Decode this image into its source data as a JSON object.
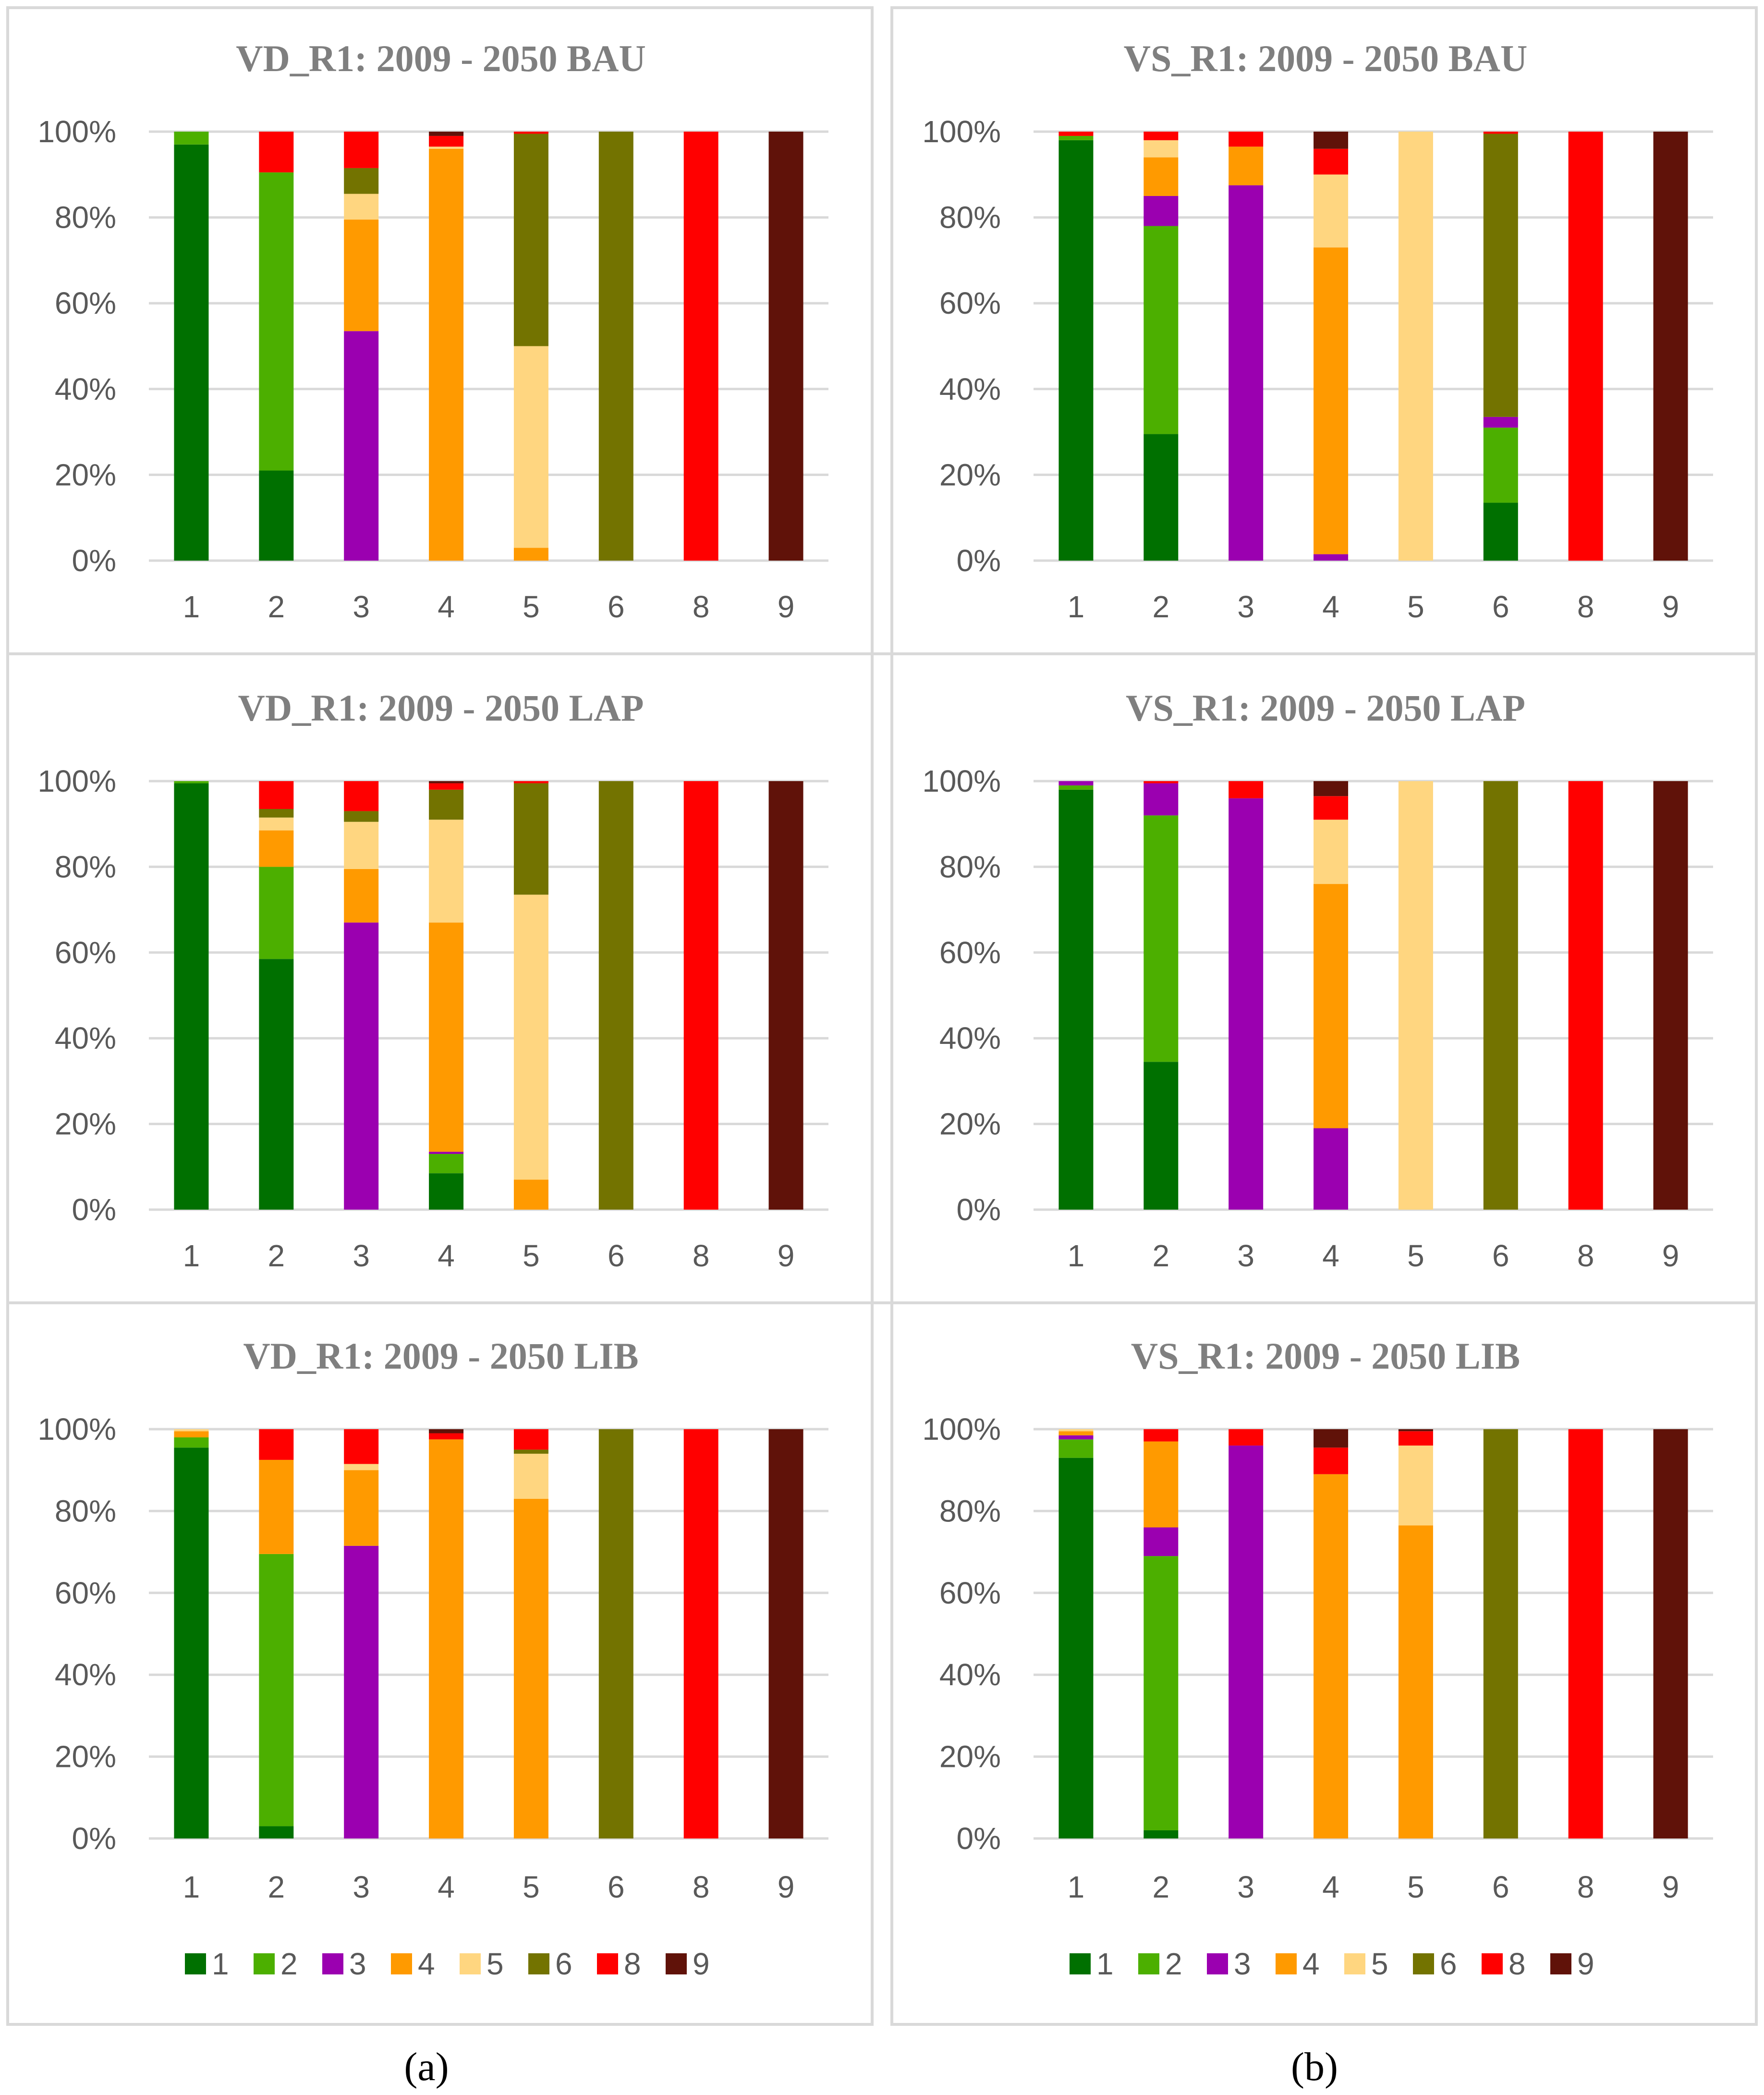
{
  "colors": {
    "1": "#007000",
    "2": "#4caf00",
    "3": "#9b00b0",
    "4": "#ff9a00",
    "5": "#ffd680",
    "6": "#737300",
    "8": "#ff0000",
    "9": "#601209"
  },
  "panel_labels": [
    "(a)",
    "(b)"
  ],
  "chart_data": [
    {
      "type": "bar",
      "stacked": true,
      "title": "VD_R1: 2009 - 2050 BAU",
      "categories": [
        "1",
        "2",
        "3",
        "4",
        "5",
        "6",
        "8",
        "9"
      ],
      "y_ticks": [
        "0%",
        "20%",
        "40%",
        "60%",
        "80%",
        "100%"
      ],
      "ylim": [
        0,
        100
      ],
      "grid": true,
      "legend": "none",
      "stack_keys": [
        "1",
        "2",
        "3",
        "4",
        "5",
        "6",
        "8",
        "9"
      ],
      "series": [
        {
          "name": "1",
          "values": [
            97,
            21,
            0,
            0,
            0,
            0,
            0,
            0
          ]
        },
        {
          "name": "2",
          "values": [
            3,
            69.5,
            0,
            0,
            0,
            0,
            0,
            0
          ]
        },
        {
          "name": "3",
          "values": [
            0,
            0,
            53.5,
            0,
            0,
            0,
            0,
            0
          ]
        },
        {
          "name": "4",
          "values": [
            0,
            0,
            26,
            96,
            3,
            0,
            0,
            0
          ]
        },
        {
          "name": "5",
          "values": [
            0,
            0,
            6,
            0.5,
            47,
            0,
            0,
            0
          ]
        },
        {
          "name": "6",
          "values": [
            0,
            0,
            6,
            0,
            49.5,
            100,
            0,
            0
          ]
        },
        {
          "name": "8",
          "values": [
            0,
            9.5,
            8.5,
            2.5,
            0.5,
            0,
            100,
            0
          ]
        },
        {
          "name": "9",
          "values": [
            0,
            0,
            0,
            1,
            0,
            0,
            0,
            100
          ]
        }
      ]
    },
    {
      "type": "bar",
      "stacked": true,
      "title": "VS_R1: 2009 - 2050 BAU",
      "categories": [
        "1",
        "2",
        "3",
        "4",
        "5",
        "6",
        "8",
        "9"
      ],
      "y_ticks": [
        "0%",
        "20%",
        "40%",
        "60%",
        "80%",
        "100%"
      ],
      "ylim": [
        0,
        100
      ],
      "grid": true,
      "legend": "none",
      "stack_keys": [
        "1",
        "2",
        "3",
        "4",
        "5",
        "6",
        "8",
        "9"
      ],
      "series": [
        {
          "name": "1",
          "values": [
            98,
            29.5,
            0,
            0,
            0,
            13.5,
            0,
            0
          ]
        },
        {
          "name": "2",
          "values": [
            1,
            48.5,
            0,
            0,
            0,
            17.5,
            0,
            0
          ]
        },
        {
          "name": "3",
          "values": [
            0,
            7,
            87.5,
            1.5,
            0,
            2.5,
            0,
            0
          ]
        },
        {
          "name": "4",
          "values": [
            0,
            9,
            9,
            71.5,
            0,
            0,
            0,
            0
          ]
        },
        {
          "name": "5",
          "values": [
            0,
            4,
            0,
            17,
            100,
            0,
            0,
            0
          ]
        },
        {
          "name": "6",
          "values": [
            0,
            0,
            0,
            0,
            0,
            66,
            0,
            0
          ]
        },
        {
          "name": "8",
          "values": [
            1,
            2,
            3.5,
            6,
            0,
            0.5,
            100,
            0
          ]
        },
        {
          "name": "9",
          "values": [
            0,
            0,
            0,
            4,
            0,
            0,
            0,
            100
          ]
        }
      ]
    },
    {
      "type": "bar",
      "stacked": true,
      "title": "VD_R1: 2009 - 2050 LAP",
      "categories": [
        "1",
        "2",
        "3",
        "4",
        "5",
        "6",
        "8",
        "9"
      ],
      "y_ticks": [
        "0%",
        "20%",
        "40%",
        "60%",
        "80%",
        "100%"
      ],
      "ylim": [
        0,
        100
      ],
      "grid": true,
      "legend": "none",
      "stack_keys": [
        "1",
        "2",
        "3",
        "4",
        "5",
        "6",
        "8",
        "9"
      ],
      "series": [
        {
          "name": "1",
          "values": [
            99.5,
            58.5,
            0,
            8.5,
            0,
            0,
            0,
            0
          ]
        },
        {
          "name": "2",
          "values": [
            0.5,
            21.5,
            0,
            4.5,
            0,
            0,
            0,
            0
          ]
        },
        {
          "name": "3",
          "values": [
            0,
            0,
            67,
            0.5,
            0,
            0,
            0,
            0
          ]
        },
        {
          "name": "4",
          "values": [
            0,
            8.5,
            12.5,
            53.5,
            7,
            0,
            0,
            0
          ]
        },
        {
          "name": "5",
          "values": [
            0,
            3,
            11,
            24,
            66.5,
            0,
            0,
            0
          ]
        },
        {
          "name": "6",
          "values": [
            0,
            2,
            2.5,
            7,
            26,
            100,
            0,
            0
          ]
        },
        {
          "name": "8",
          "values": [
            0,
            6.5,
            7,
            1.5,
            0.5,
            0,
            100,
            0
          ]
        },
        {
          "name": "9",
          "values": [
            0,
            0,
            0,
            0.5,
            0,
            0,
            0,
            100
          ]
        }
      ]
    },
    {
      "type": "bar",
      "stacked": true,
      "title": "VS_R1: 2009 - 2050 LAP",
      "categories": [
        "1",
        "2",
        "3",
        "4",
        "5",
        "6",
        "8",
        "9"
      ],
      "y_ticks": [
        "0%",
        "20%",
        "40%",
        "60%",
        "80%",
        "100%"
      ],
      "ylim": [
        0,
        100
      ],
      "grid": true,
      "legend": "none",
      "stack_keys": [
        "1",
        "2",
        "3",
        "4",
        "5",
        "6",
        "8",
        "9"
      ],
      "series": [
        {
          "name": "1",
          "values": [
            98,
            34.5,
            0,
            0,
            0,
            0,
            0,
            0
          ]
        },
        {
          "name": "2",
          "values": [
            1,
            57.5,
            0,
            0,
            0,
            0,
            0,
            0
          ]
        },
        {
          "name": "3",
          "values": [
            1,
            7.5,
            96,
            19,
            0,
            0,
            0,
            0
          ]
        },
        {
          "name": "4",
          "values": [
            0,
            0,
            0,
            57,
            0,
            0,
            0,
            0
          ]
        },
        {
          "name": "5",
          "values": [
            0,
            0,
            0,
            15,
            100,
            0,
            0,
            0
          ]
        },
        {
          "name": "6",
          "values": [
            0,
            0,
            0,
            0,
            0,
            100,
            0,
            0
          ]
        },
        {
          "name": "8",
          "values": [
            0,
            0.5,
            4,
            5.5,
            0,
            0,
            100,
            0
          ]
        },
        {
          "name": "9",
          "values": [
            0,
            0,
            0,
            3.5,
            0,
            0,
            0,
            100
          ]
        }
      ]
    },
    {
      "type": "bar",
      "stacked": true,
      "title": "VD_R1: 2009 - 2050 LIB",
      "categories": [
        "1",
        "2",
        "3",
        "4",
        "5",
        "6",
        "8",
        "9"
      ],
      "y_ticks": [
        "0%",
        "20%",
        "40%",
        "60%",
        "80%",
        "100%"
      ],
      "ylim": [
        0,
        100
      ],
      "grid": true,
      "legend": "bottom",
      "stack_keys": [
        "1",
        "2",
        "3",
        "4",
        "5",
        "6",
        "8",
        "9"
      ],
      "series": [
        {
          "name": "1",
          "values": [
            95.5,
            3,
            0,
            0,
            0,
            0,
            0,
            0
          ]
        },
        {
          "name": "2",
          "values": [
            2.5,
            66.5,
            0,
            0,
            0,
            0,
            0,
            0
          ]
        },
        {
          "name": "3",
          "values": [
            0,
            0,
            71.5,
            0,
            0,
            0,
            0,
            0
          ]
        },
        {
          "name": "4",
          "values": [
            1.5,
            23,
            18.5,
            97.5,
            83,
            0,
            0,
            0
          ]
        },
        {
          "name": "5",
          "values": [
            0.5,
            0,
            1.5,
            0,
            11,
            0,
            0,
            0
          ]
        },
        {
          "name": "6",
          "values": [
            0,
            0,
            0,
            0,
            1,
            100,
            0,
            0
          ]
        },
        {
          "name": "8",
          "values": [
            0,
            7.5,
            8.5,
            1.5,
            5,
            0,
            100,
            0
          ]
        },
        {
          "name": "9",
          "values": [
            0,
            0,
            0,
            1,
            0,
            0,
            0,
            100
          ]
        }
      ]
    },
    {
      "type": "bar",
      "stacked": true,
      "title": "VS_R1: 2009 - 2050 LIB",
      "categories": [
        "1",
        "2",
        "3",
        "4",
        "5",
        "6",
        "8",
        "9"
      ],
      "y_ticks": [
        "0%",
        "20%",
        "40%",
        "60%",
        "80%",
        "100%"
      ],
      "ylim": [
        0,
        100
      ],
      "grid": true,
      "legend": "bottom",
      "stack_keys": [
        "1",
        "2",
        "3",
        "4",
        "5",
        "6",
        "8",
        "9"
      ],
      "series": [
        {
          "name": "1",
          "values": [
            93,
            2,
            0,
            0,
            0,
            0,
            0,
            0
          ]
        },
        {
          "name": "2",
          "values": [
            4.5,
            67,
            0,
            0,
            0,
            0,
            0,
            0
          ]
        },
        {
          "name": "3",
          "values": [
            1,
            7,
            96,
            0,
            0,
            0,
            0,
            0
          ]
        },
        {
          "name": "4",
          "values": [
            1,
            21,
            0,
            89,
            76.5,
            0,
            0,
            0
          ]
        },
        {
          "name": "5",
          "values": [
            0.5,
            0,
            0,
            0,
            19.5,
            0,
            0,
            0
          ]
        },
        {
          "name": "6",
          "values": [
            0,
            0,
            0,
            0,
            0,
            100,
            0,
            0
          ]
        },
        {
          "name": "8",
          "values": [
            0,
            3,
            4,
            6.5,
            3.5,
            0,
            100,
            0
          ]
        },
        {
          "name": "9",
          "values": [
            0,
            0,
            0,
            4.5,
            0.5,
            0,
            0,
            100
          ]
        }
      ]
    }
  ]
}
